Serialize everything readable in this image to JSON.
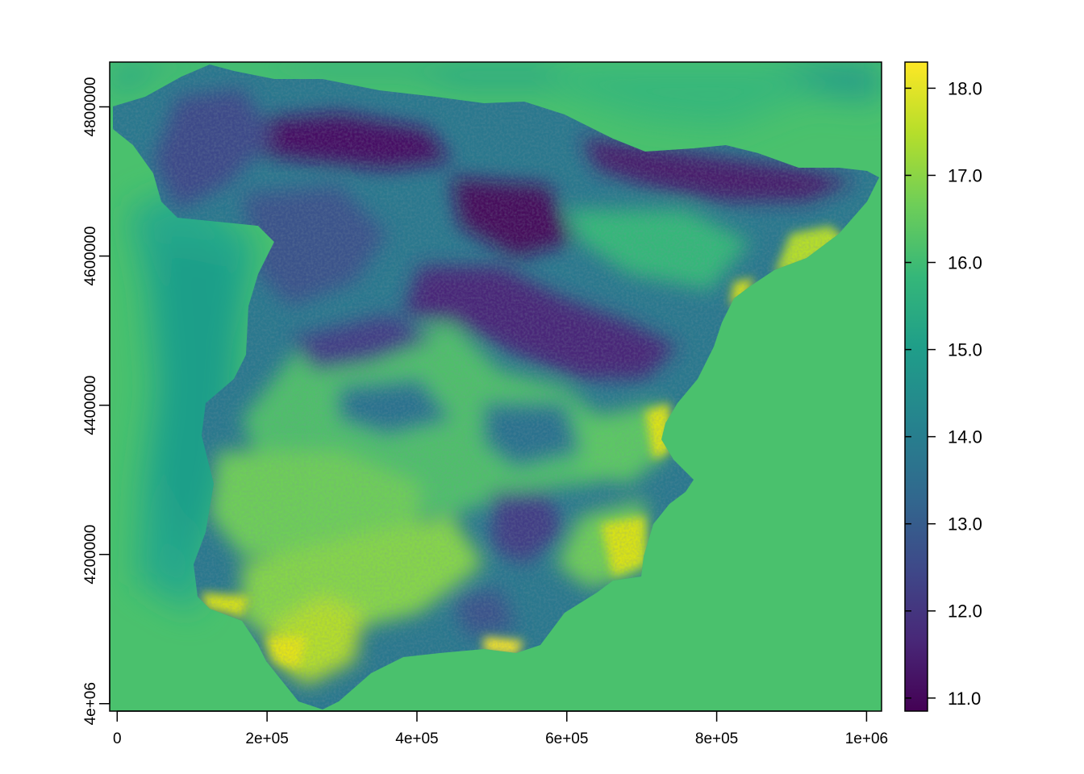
{
  "map": {
    "x_ticks": [
      "0",
      "2e+05",
      "4e+05",
      "6e+05",
      "8e+05",
      "1e+06"
    ],
    "y_ticks": [
      "4e+06",
      "4200000",
      "4400000",
      "4600000",
      "4800000"
    ],
    "x_range": [
      -10000,
      1020000
    ],
    "y_range": [
      3990000,
      4860000
    ],
    "colorbar": {
      "ticks": [
        "11.0",
        "12.0",
        "13.0",
        "14.0",
        "15.0",
        "16.0",
        "17.0",
        "18.0"
      ],
      "min": 10.85,
      "max": 18.3,
      "palette": "viridis"
    },
    "colors": {
      "sea": "#4ac16d",
      "viridis_stops": [
        "#440154",
        "#482878",
        "#3e4989",
        "#31688e",
        "#26828e",
        "#1f9e89",
        "#35b779",
        "#6ece58",
        "#b5de2b",
        "#fde725"
      ]
    }
  }
}
